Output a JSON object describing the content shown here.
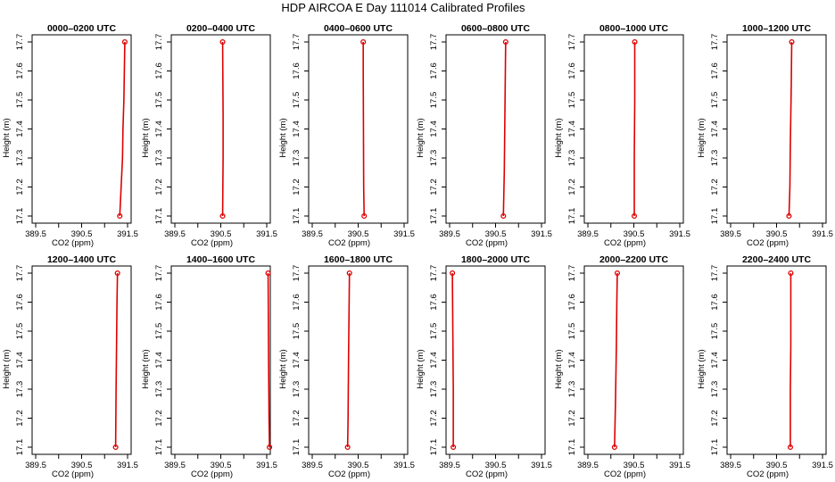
{
  "figure": {
    "title": "HDP AIRCOA E  Day 111014  Calibrated Profiles",
    "line_color": "#dd0000"
  },
  "chart_data": [
    {
      "type": "line",
      "title": "0000–0200 UTC",
      "xlabel": "CO2 (ppm)",
      "ylabel": "Height (m)",
      "xlim": [
        389.5,
        391.5
      ],
      "ylim": [
        17.1,
        17.7
      ],
      "x_ticks": [
        "389.5",
        "390.5",
        "391.5"
      ],
      "y_ticks": [
        "17.1",
        "17.2",
        "17.3",
        "17.4",
        "17.5",
        "17.6",
        "17.7"
      ],
      "series": [
        {
          "x": [
            391.33,
            391.36,
            391.39,
            391.4,
            391.42,
            391.44
          ],
          "y": [
            17.1,
            17.2,
            17.3,
            17.4,
            17.5,
            17.7
          ]
        }
      ]
    },
    {
      "type": "line",
      "title": "0200–0400 UTC",
      "xlabel": "CO2 (ppm)",
      "ylabel": "Height (m)",
      "xlim": [
        389.5,
        391.5
      ],
      "ylim": [
        17.1,
        17.7
      ],
      "x_ticks": [
        "389.5",
        "390.5",
        "391.5"
      ],
      "y_ticks": [
        "17.1",
        "17.2",
        "17.3",
        "17.4",
        "17.5",
        "17.6",
        "17.7"
      ],
      "series": [
        {
          "x": [
            390.54,
            390.55,
            390.55,
            390.54
          ],
          "y": [
            17.1,
            17.3,
            17.45,
            17.7
          ]
        }
      ]
    },
    {
      "type": "line",
      "title": "0400–0600 UTC",
      "xlabel": "CO2 (ppm)",
      "ylabel": "Height (m)",
      "xlim": [
        389.5,
        391.5
      ],
      "ylim": [
        17.1,
        17.7
      ],
      "x_ticks": [
        "389.5",
        "390.5",
        "391.5"
      ],
      "y_ticks": [
        "17.1",
        "17.2",
        "17.3",
        "17.4",
        "17.5",
        "17.6",
        "17.7"
      ],
      "series": [
        {
          "x": [
            390.63,
            390.62,
            390.61,
            390.61
          ],
          "y": [
            17.1,
            17.2,
            17.6,
            17.7
          ]
        }
      ]
    },
    {
      "type": "line",
      "title": "0600–0800 UTC",
      "xlabel": "CO2 (ppm)",
      "ylabel": "Height (m)",
      "xlim": [
        389.5,
        391.5
      ],
      "ylim": [
        17.1,
        17.7
      ],
      "x_ticks": [
        "389.5",
        "390.5",
        "391.5"
      ],
      "y_ticks": [
        "17.1",
        "17.2",
        "17.3",
        "17.4",
        "17.5",
        "17.6",
        "17.7"
      ],
      "series": [
        {
          "x": [
            390.67,
            390.69,
            390.7,
            390.71,
            390.72
          ],
          "y": [
            17.1,
            17.25,
            17.4,
            17.55,
            17.7
          ]
        }
      ]
    },
    {
      "type": "line",
      "title": "0800–1000 UTC",
      "xlabel": "CO2 (ppm)",
      "ylabel": "Height (m)",
      "xlim": [
        389.5,
        391.5
      ],
      "ylim": [
        17.1,
        17.7
      ],
      "x_ticks": [
        "389.5",
        "390.5",
        "391.5"
      ],
      "y_ticks": [
        "17.1",
        "17.2",
        "17.3",
        "17.4",
        "17.5",
        "17.6",
        "17.7"
      ],
      "series": [
        {
          "x": [
            390.51,
            390.51,
            390.52,
            390.52
          ],
          "y": [
            17.1,
            17.3,
            17.5,
            17.7
          ]
        }
      ]
    },
    {
      "type": "line",
      "title": "1000–1200 UTC",
      "xlabel": "CO2 (ppm)",
      "ylabel": "Height (m)",
      "xlim": [
        389.5,
        391.5
      ],
      "ylim": [
        17.1,
        17.7
      ],
      "x_ticks": [
        "389.5",
        "390.5",
        "391.5"
      ],
      "y_ticks": [
        "17.1",
        "17.2",
        "17.3",
        "17.4",
        "17.5",
        "17.6",
        "17.7"
      ],
      "series": [
        {
          "x": [
            390.77,
            390.79,
            390.8,
            390.82,
            390.83
          ],
          "y": [
            17.1,
            17.2,
            17.35,
            17.55,
            17.7
          ]
        }
      ]
    },
    {
      "type": "line",
      "title": "1200–1400 UTC",
      "xlabel": "CO2 (ppm)",
      "ylabel": "Height (m)",
      "xlim": [
        389.5,
        391.5
      ],
      "ylim": [
        17.1,
        17.7
      ],
      "x_ticks": [
        "389.5",
        "390.5",
        "391.5"
      ],
      "y_ticks": [
        "17.1",
        "17.2",
        "17.3",
        "17.4",
        "17.5",
        "17.6",
        "17.7"
      ],
      "series": [
        {
          "x": [
            391.24,
            391.25,
            391.26,
            391.27,
            391.28
          ],
          "y": [
            17.1,
            17.3,
            17.45,
            17.6,
            17.7
          ]
        }
      ]
    },
    {
      "type": "line",
      "title": "1400–1600 UTC",
      "xlabel": "CO2 (ppm)",
      "ylabel": "Height (m)",
      "xlim": [
        389.5,
        391.5
      ],
      "ylim": [
        17.1,
        17.7
      ],
      "x_ticks": [
        "389.5",
        "390.5",
        "391.5"
      ],
      "y_ticks": [
        "17.1",
        "17.2",
        "17.3",
        "17.4",
        "17.5",
        "17.6",
        "17.7"
      ],
      "series": [
        {
          "x": [
            391.56,
            391.55,
            391.54,
            391.53
          ],
          "y": [
            17.1,
            17.2,
            17.4,
            17.7
          ]
        }
      ]
    },
    {
      "type": "line",
      "title": "1600–1800 UTC",
      "xlabel": "CO2 (ppm)",
      "ylabel": "Height (m)",
      "xlim": [
        389.5,
        391.5
      ],
      "ylim": [
        17.1,
        17.7
      ],
      "x_ticks": [
        "389.5",
        "390.5",
        "391.5"
      ],
      "y_ticks": [
        "17.1",
        "17.2",
        "17.3",
        "17.4",
        "17.5",
        "17.6",
        "17.7"
      ],
      "series": [
        {
          "x": [
            390.27,
            390.28,
            390.29,
            390.3,
            390.31
          ],
          "y": [
            17.1,
            17.2,
            17.4,
            17.55,
            17.7
          ]
        }
      ]
    },
    {
      "type": "line",
      "title": "1800–2000 UTC",
      "xlabel": "CO2 (ppm)",
      "ylabel": "Height (m)",
      "xlim": [
        389.5,
        391.5
      ],
      "ylim": [
        17.1,
        17.7
      ],
      "x_ticks": [
        "389.5",
        "390.5",
        "391.5"
      ],
      "y_ticks": [
        "17.1",
        "17.2",
        "17.3",
        "17.4",
        "17.5",
        "17.6",
        "17.7"
      ],
      "series": [
        {
          "x": [
            389.58,
            389.58,
            389.57,
            389.56
          ],
          "y": [
            17.1,
            17.3,
            17.5,
            17.7
          ]
        }
      ]
    },
    {
      "type": "line",
      "title": "2000–2200 UTC",
      "xlabel": "CO2 (ppm)",
      "ylabel": "Height (m)",
      "xlim": [
        389.5,
        391.5
      ],
      "ylim": [
        17.1,
        17.7
      ],
      "x_ticks": [
        "389.5",
        "390.5",
        "391.5"
      ],
      "y_ticks": [
        "17.1",
        "17.2",
        "17.3",
        "17.4",
        "17.5",
        "17.6",
        "17.7"
      ],
      "series": [
        {
          "x": [
            390.08,
            390.1,
            390.12,
            390.13,
            390.14
          ],
          "y": [
            17.1,
            17.25,
            17.45,
            17.6,
            17.7
          ]
        }
      ]
    },
    {
      "type": "line",
      "title": "2200–2400 UTC",
      "xlabel": "CO2 (ppm)",
      "ylabel": "Height (m)",
      "xlim": [
        389.5,
        391.5
      ],
      "ylim": [
        17.1,
        17.7
      ],
      "x_ticks": [
        "389.5",
        "390.5",
        "391.5"
      ],
      "y_ticks": [
        "17.1",
        "17.2",
        "17.3",
        "17.4",
        "17.5",
        "17.6",
        "17.7"
      ],
      "series": [
        {
          "x": [
            390.8,
            390.8,
            390.81,
            390.81
          ],
          "y": [
            17.1,
            17.3,
            17.45,
            17.7
          ]
        }
      ]
    }
  ]
}
